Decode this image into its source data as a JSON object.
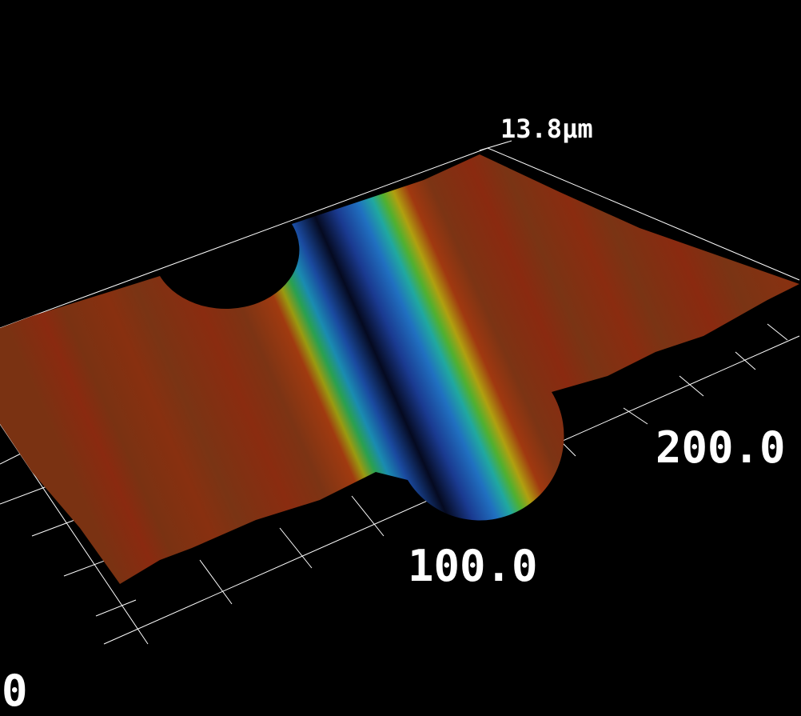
{
  "view": {
    "z_max_label": "13.8μm",
    "x_labels": [
      "0",
      "100.0",
      "200.0"
    ],
    "colormap": [
      "#000000",
      "#0a2a8a",
      "#1f6fd0",
      "#1fb0b0",
      "#3cb44a",
      "#c8b400",
      "#b43c14",
      "#7a2e12"
    ],
    "surface_color": "#7a3212",
    "background": "#000000",
    "grid_color": "#ffffff"
  }
}
